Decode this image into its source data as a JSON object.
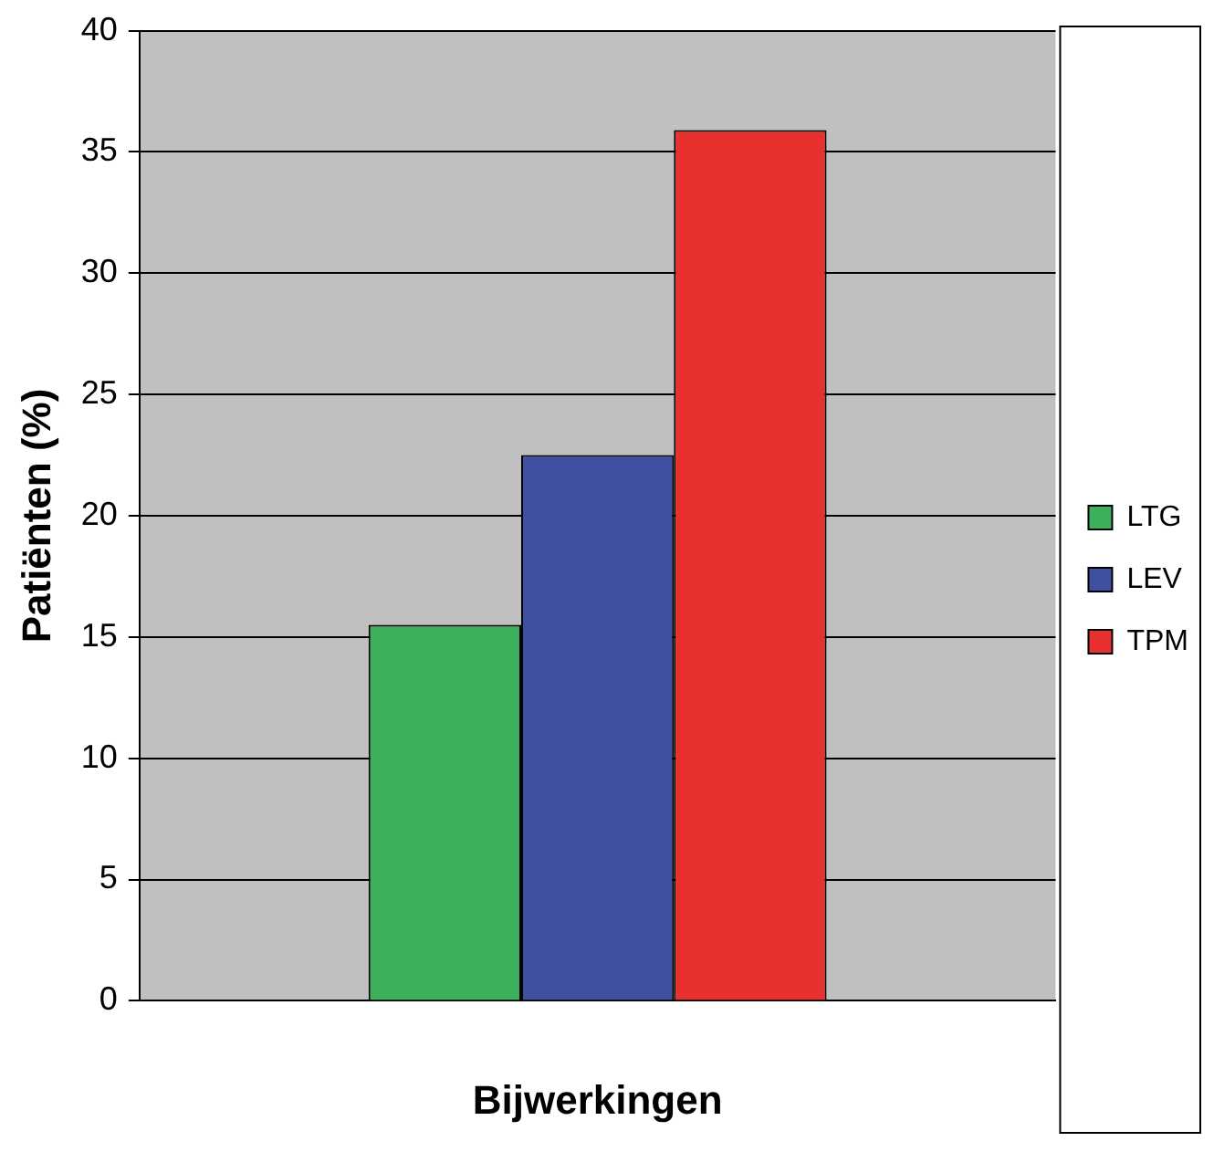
{
  "chart_data": {
    "type": "bar",
    "xlabel": "Bijwerkingen",
    "ylabel": "Patiënten (%)",
    "categories": [
      null
    ],
    "series": [
      {
        "name": "LTG",
        "color": "#3cb05a",
        "values": [
          15.5
        ]
      },
      {
        "name": "LEV",
        "color": "#3f50a0",
        "values": [
          22.5
        ]
      },
      {
        "name": "TPM",
        "color": "#e8312f",
        "values": [
          35.9
        ]
      }
    ],
    "ylim": [
      0,
      40
    ],
    "yticks": [
      0,
      5,
      10,
      15,
      20,
      25,
      30,
      35,
      40
    ],
    "grid": "y",
    "legend": "right"
  }
}
